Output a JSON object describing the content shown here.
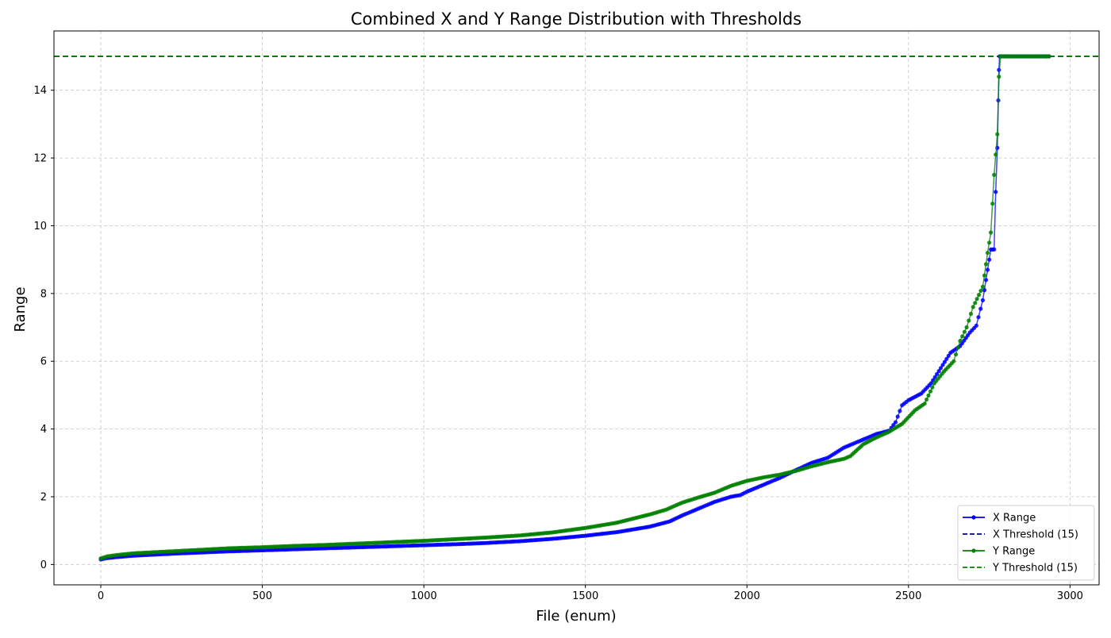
{
  "chart_data": {
    "type": "line",
    "title": "Combined X and Y Range Distribution with Thresholds",
    "xlabel": "File (enum)",
    "ylabel": "Range",
    "xlim": [
      -145,
      3090
    ],
    "ylim": [
      -0.6,
      15.75
    ],
    "xticks": [
      0,
      500,
      1000,
      1500,
      2000,
      2500,
      3000
    ],
    "yticks": [
      0,
      2,
      4,
      6,
      8,
      10,
      12,
      14
    ],
    "grid": true,
    "legend_position": "lower-right",
    "series": [
      {
        "name": "X Range",
        "color": "#0000ff",
        "style": "line-with-markers",
        "points": [
          [
            0,
            0.15
          ],
          [
            20,
            0.19
          ],
          [
            50,
            0.22
          ],
          [
            100,
            0.26
          ],
          [
            200,
            0.31
          ],
          [
            300,
            0.35
          ],
          [
            400,
            0.39
          ],
          [
            500,
            0.42
          ],
          [
            600,
            0.45
          ],
          [
            700,
            0.48
          ],
          [
            800,
            0.51
          ],
          [
            900,
            0.54
          ],
          [
            1000,
            0.57
          ],
          [
            1100,
            0.6
          ],
          [
            1200,
            0.64
          ],
          [
            1300,
            0.69
          ],
          [
            1400,
            0.76
          ],
          [
            1500,
            0.85
          ],
          [
            1600,
            0.96
          ],
          [
            1700,
            1.12
          ],
          [
            1760,
            1.27
          ],
          [
            1800,
            1.45
          ],
          [
            1850,
            1.65
          ],
          [
            1900,
            1.85
          ],
          [
            1950,
            2.0
          ],
          [
            1980,
            2.05
          ],
          [
            2000,
            2.15
          ],
          [
            2050,
            2.35
          ],
          [
            2100,
            2.55
          ],
          [
            2150,
            2.78
          ],
          [
            2200,
            3.0
          ],
          [
            2250,
            3.15
          ],
          [
            2300,
            3.45
          ],
          [
            2350,
            3.65
          ],
          [
            2400,
            3.85
          ],
          [
            2440,
            3.95
          ],
          [
            2460,
            4.2
          ],
          [
            2480,
            4.7
          ],
          [
            2500,
            4.85
          ],
          [
            2540,
            5.05
          ],
          [
            2570,
            5.35
          ],
          [
            2600,
            5.8
          ],
          [
            2630,
            6.25
          ],
          [
            2660,
            6.45
          ],
          [
            2690,
            6.85
          ],
          [
            2710,
            7.05
          ],
          [
            2730,
            7.8
          ],
          [
            2745,
            8.7
          ],
          [
            2755,
            9.3
          ],
          [
            2765,
            9.3
          ],
          [
            2770,
            11.0
          ],
          [
            2775,
            12.3
          ],
          [
            2778,
            13.7
          ],
          [
            2780,
            14.6
          ],
          [
            2782,
            15.0
          ],
          [
            2800,
            15.0
          ],
          [
            2850,
            15.0
          ],
          [
            2900,
            15.0
          ],
          [
            2935,
            15.0
          ]
        ]
      },
      {
        "name": "X Threshold (15)",
        "color": "#00008b",
        "style": "dashed",
        "value": 15
      },
      {
        "name": "Y Range",
        "color": "#008000",
        "style": "line-with-markers",
        "points": [
          [
            0,
            0.18
          ],
          [
            20,
            0.24
          ],
          [
            50,
            0.28
          ],
          [
            100,
            0.33
          ],
          [
            200,
            0.38
          ],
          [
            300,
            0.43
          ],
          [
            400,
            0.48
          ],
          [
            500,
            0.51
          ],
          [
            600,
            0.55
          ],
          [
            700,
            0.58
          ],
          [
            800,
            0.62
          ],
          [
            900,
            0.66
          ],
          [
            1000,
            0.7
          ],
          [
            1100,
            0.75
          ],
          [
            1200,
            0.8
          ],
          [
            1300,
            0.86
          ],
          [
            1400,
            0.95
          ],
          [
            1500,
            1.08
          ],
          [
            1600,
            1.24
          ],
          [
            1700,
            1.48
          ],
          [
            1750,
            1.62
          ],
          [
            1800,
            1.83
          ],
          [
            1850,
            1.98
          ],
          [
            1900,
            2.12
          ],
          [
            1950,
            2.32
          ],
          [
            2000,
            2.47
          ],
          [
            2050,
            2.57
          ],
          [
            2100,
            2.65
          ],
          [
            2150,
            2.76
          ],
          [
            2200,
            2.9
          ],
          [
            2250,
            3.02
          ],
          [
            2300,
            3.12
          ],
          [
            2320,
            3.2
          ],
          [
            2360,
            3.55
          ],
          [
            2400,
            3.75
          ],
          [
            2440,
            3.92
          ],
          [
            2480,
            4.15
          ],
          [
            2520,
            4.55
          ],
          [
            2550,
            4.75
          ],
          [
            2580,
            5.35
          ],
          [
            2610,
            5.7
          ],
          [
            2640,
            6.0
          ],
          [
            2660,
            6.6
          ],
          [
            2680,
            7.0
          ],
          [
            2700,
            7.6
          ],
          [
            2730,
            8.2
          ],
          [
            2745,
            9.2
          ],
          [
            2755,
            9.8
          ],
          [
            2765,
            11.5
          ],
          [
            2775,
            12.7
          ],
          [
            2780,
            14.4
          ],
          [
            2785,
            15.0
          ],
          [
            2800,
            15.0
          ],
          [
            2850,
            15.0
          ],
          [
            2900,
            15.0
          ],
          [
            2935,
            15.0
          ]
        ]
      },
      {
        "name": "Y Threshold (15)",
        "color": "#008000",
        "style": "dashed",
        "value": 15
      }
    ]
  }
}
